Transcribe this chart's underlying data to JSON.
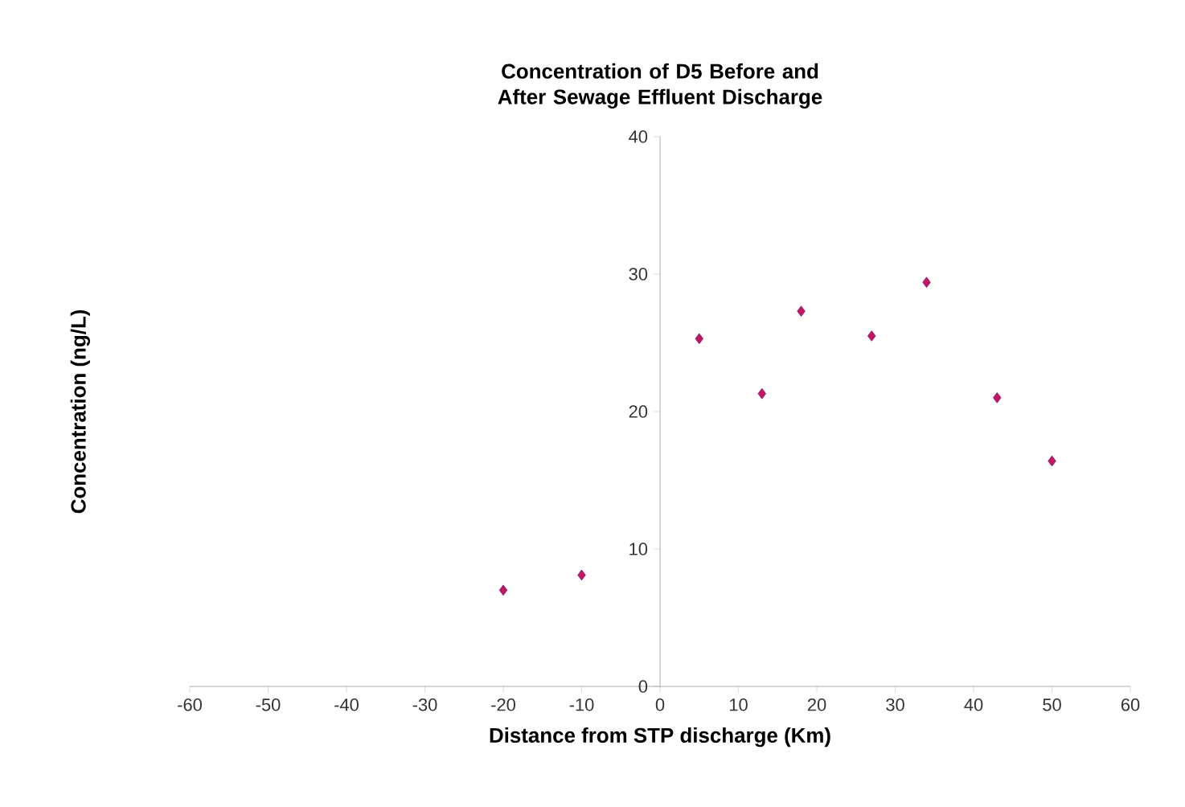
{
  "chart_data": {
    "type": "scatter",
    "title": "Concentration of D5 Before and After Sewage Effluent Discharge",
    "xlabel": "Distance from STP discharge (Km)",
    "ylabel": "Concentration (ng/L)",
    "x": [
      -20,
      -10,
      5,
      13,
      18,
      27,
      34,
      43,
      50
    ],
    "values": [
      7.0,
      8.1,
      25.3,
      21.3,
      27.3,
      25.5,
      29.4,
      21.0,
      16.4
    ],
    "color": "#c0185a",
    "marker": "diamond",
    "xlim": [
      -60,
      60
    ],
    "xticks": [
      -60,
      -50,
      -40,
      -30,
      -20,
      -10,
      0,
      10,
      20,
      30,
      40,
      50,
      60
    ],
    "ylim": [
      0,
      40
    ],
    "yticks": [
      0,
      10,
      20,
      30,
      40
    ]
  }
}
